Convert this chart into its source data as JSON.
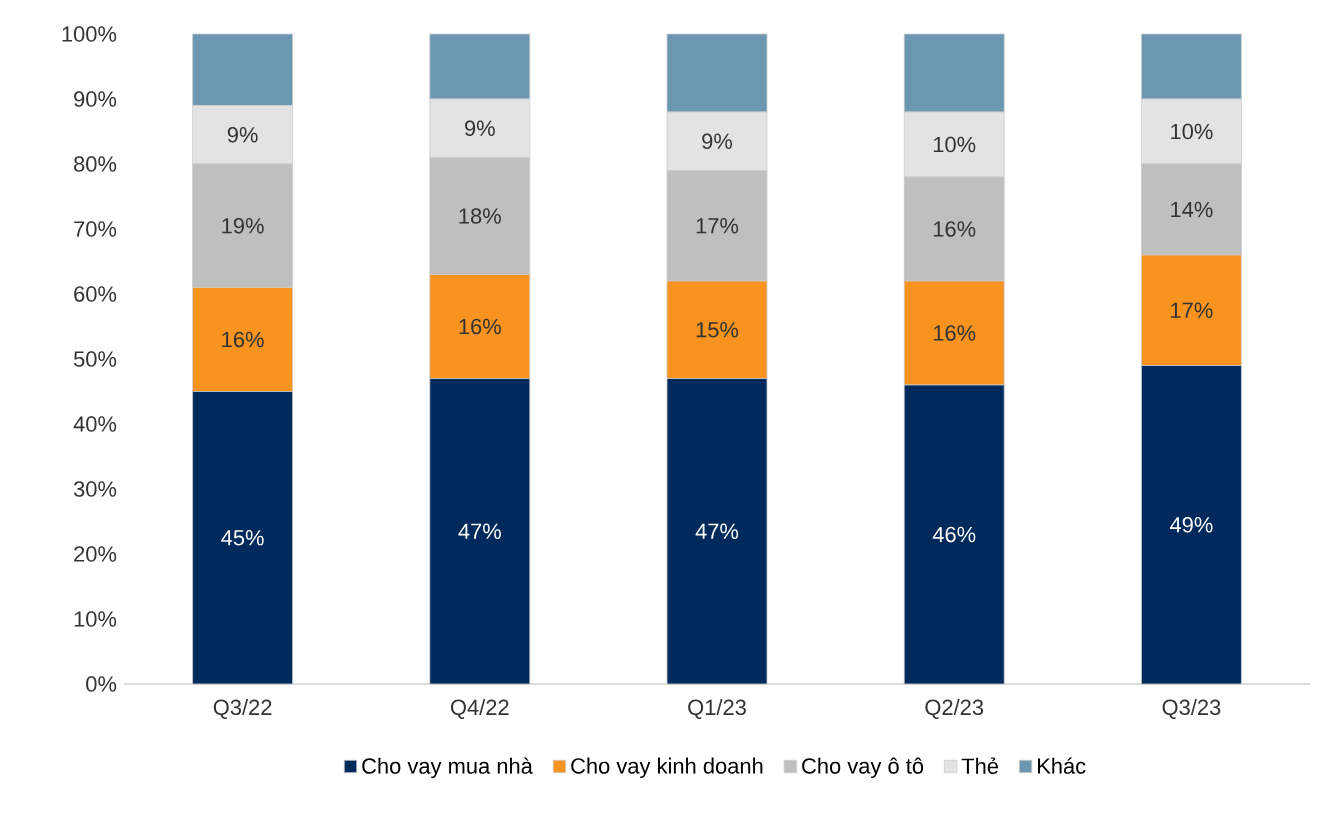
{
  "chart_data": {
    "type": "bar",
    "stacked": true,
    "categories": [
      "Q3/22",
      "Q4/22",
      "Q1/23",
      "Q2/23",
      "Q3/23"
    ],
    "series": [
      {
        "name": "Cho vay mua nhà",
        "color": "#002a5c",
        "values": [
          45,
          47,
          47,
          46,
          49
        ],
        "value_labels": [
          "45%",
          "47%",
          "47%",
          "46%",
          "49%"
        ]
      },
      {
        "name": "Cho vay kinh doanh",
        "color": "#f7931e",
        "values": [
          16,
          16,
          15,
          16,
          17
        ],
        "value_labels": [
          "16%",
          "16%",
          "15%",
          "16%",
          "17%"
        ]
      },
      {
        "name": "Cho vay ô tô",
        "color": "#bfbfbf",
        "values": [
          19,
          18,
          17,
          16,
          14
        ],
        "value_labels": [
          "19%",
          "18%",
          "17%",
          "16%",
          "14%"
        ]
      },
      {
        "name": "Thẻ",
        "color": "#e3e3e3",
        "values": [
          9,
          9,
          9,
          10,
          10
        ],
        "value_labels": [
          "9%",
          "9%",
          "9%",
          "10%",
          "10%"
        ]
      },
      {
        "name": "Khác",
        "color": "#6c97b0",
        "values": [
          11,
          10,
          12,
          12,
          10
        ]
      }
    ],
    "ylim": [
      0,
      100
    ],
    "yticks": [
      {
        "value": 0,
        "label": "0%"
      },
      {
        "value": 10,
        "label": "10%"
      },
      {
        "value": 20,
        "label": "20%"
      },
      {
        "value": 30,
        "label": "30%"
      },
      {
        "value": 40,
        "label": "40%"
      },
      {
        "value": 50,
        "label": "50%"
      },
      {
        "value": 60,
        "label": "60%"
      },
      {
        "value": 70,
        "label": "70%"
      },
      {
        "value": 80,
        "label": "80%"
      },
      {
        "value": 90,
        "label": "90%"
      },
      {
        "value": 100,
        "label": "100%"
      }
    ],
    "grid": false,
    "legend": "bottom"
  }
}
